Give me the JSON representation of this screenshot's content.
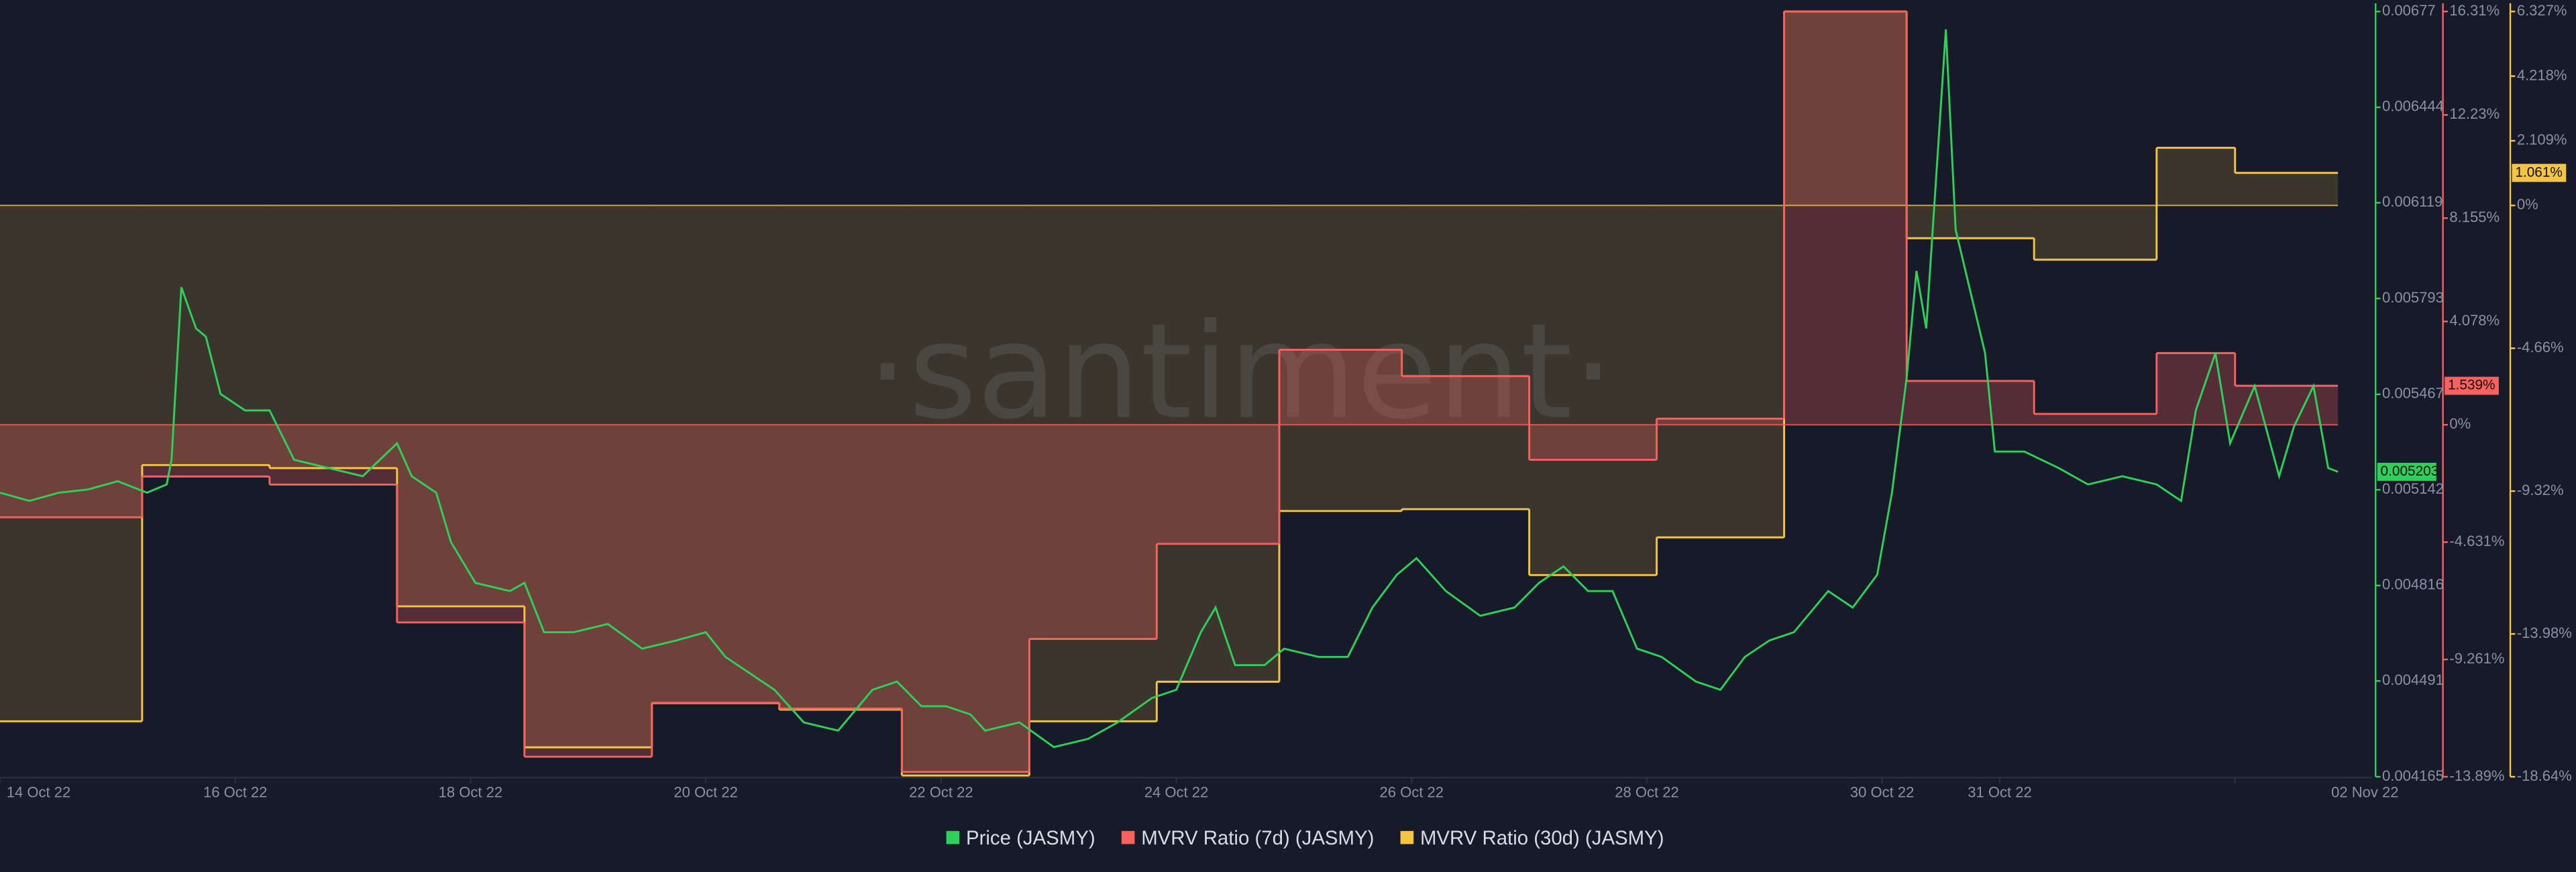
{
  "chart_data": {
    "type": "line",
    "watermark": "·santiment·",
    "xlim": [
      "2022-10-14 00:00",
      "2022-11-03 04:00"
    ],
    "xticks": [
      {
        "value": "2022-10-14 00:00",
        "label": "14 Oct 22"
      },
      {
        "value": "2022-10-16 00:00",
        "label": "16 Oct 22"
      },
      {
        "value": "2022-10-18 00:00",
        "label": "18 Oct 22"
      },
      {
        "value": "2022-10-20 00:00",
        "label": "20 Oct 22"
      },
      {
        "value": "2022-10-22 00:00",
        "label": "22 Oct 22"
      },
      {
        "value": "2022-10-24 00:00",
        "label": "24 Oct 22"
      },
      {
        "value": "2022-10-26 00:00",
        "label": "26 Oct 22"
      },
      {
        "value": "2022-10-28 00:00",
        "label": "28 Oct 22"
      },
      {
        "value": "2022-10-30 00:00",
        "label": "30 Oct 22"
      },
      {
        "value": "2022-10-31 00:00",
        "label": "31 Oct 22"
      },
      {
        "value": "2022-11-02 00:00",
        "label": "02 Nov 22"
      }
    ],
    "ylim": [
      0.004165,
      0.00677
    ],
    "yticks": [
      0.00677,
      0.006444,
      0.006119,
      0.005793,
      0.005467,
      0.005142,
      0.004816,
      0.004491,
      0.004165
    ],
    "y2lim": [
      -13.89,
      16.31
    ],
    "y2ticks": [
      {
        "value": 16.31,
        "label": "16.31%"
      },
      {
        "value": 12.23,
        "label": "12.23%"
      },
      {
        "value": 8.155,
        "label": "8.155%"
      },
      {
        "value": 4.078,
        "label": "4.078%"
      },
      {
        "value": 0,
        "label": "0%"
      },
      {
        "value": -4.631,
        "label": "-4.631%"
      },
      {
        "value": -9.261,
        "label": "-9.261%"
      },
      {
        "value": -13.89,
        "label": "-13.89%"
      }
    ],
    "y3lim": [
      -18.64,
      6.327
    ],
    "y3ticks": [
      {
        "value": 6.327,
        "label": "6.327%"
      },
      {
        "value": 4.218,
        "label": "4.218%"
      },
      {
        "value": 2.109,
        "label": "2.109%"
      },
      {
        "value": 0,
        "label": "0%"
      },
      {
        "value": -4.66,
        "label": "-4.66%"
      },
      {
        "value": -9.32,
        "label": "-9.32%"
      },
      {
        "value": -13.98,
        "label": "-13.98%"
      },
      {
        "value": -18.64,
        "label": "-18.64%"
      }
    ],
    "grid": false,
    "series": [
      {
        "name": "Price (JASMY)",
        "color": "#2fcf59",
        "x": [
          "2022-10-14 00:00",
          "2022-10-14 06:00",
          "2022-10-14 12:00",
          "2022-10-14 18:00",
          "2022-10-15 00:00",
          "2022-10-15 06:00",
          "2022-10-15 10:00",
          "2022-10-15 11:00",
          "2022-10-15 13:00",
          "2022-10-15 16:00",
          "2022-10-15 18:00",
          "2022-10-15 21:00",
          "2022-10-16 02:00",
          "2022-10-16 07:00",
          "2022-10-16 12:00",
          "2022-10-16 19:00",
          "2022-10-17 02:00",
          "2022-10-17 09:00",
          "2022-10-17 12:00",
          "2022-10-17 17:00",
          "2022-10-17 20:00",
          "2022-10-18 01:00",
          "2022-10-18 08:00",
          "2022-10-18 11:00",
          "2022-10-18 15:00",
          "2022-10-18 21:00",
          "2022-10-19 04:00",
          "2022-10-19 11:00",
          "2022-10-19 18:00",
          "2022-10-20 00:00",
          "2022-10-20 04:00",
          "2022-10-20 09:00",
          "2022-10-20 14:00",
          "2022-10-20 20:00",
          "2022-10-21 03:00",
          "2022-10-21 10:00",
          "2022-10-21 15:00",
          "2022-10-21 20:00",
          "2022-10-22 01:00",
          "2022-10-22 06:00",
          "2022-10-22 09:00",
          "2022-10-22 16:00",
          "2022-10-22 23:00",
          "2022-10-23 06:00",
          "2022-10-23 12:00",
          "2022-10-23 19:00",
          "2022-10-24 00:00",
          "2022-10-24 05:00",
          "2022-10-24 08:00",
          "2022-10-24 12:00",
          "2022-10-24 18:00",
          "2022-10-24 22:00",
          "2022-10-25 05:00",
          "2022-10-25 11:00",
          "2022-10-25 16:00",
          "2022-10-25 21:00",
          "2022-10-26 01:00",
          "2022-10-26 07:00",
          "2022-10-26 14:00",
          "2022-10-26 21:00",
          "2022-10-27 02:00",
          "2022-10-27 07:00",
          "2022-10-27 12:00",
          "2022-10-27 17:00",
          "2022-10-27 22:00",
          "2022-10-28 03:00",
          "2022-10-28 10:00",
          "2022-10-28 15:00",
          "2022-10-28 20:00",
          "2022-10-29 01:00",
          "2022-10-29 06:00",
          "2022-10-29 13:00",
          "2022-10-29 18:00",
          "2022-10-29 23:00",
          "2022-10-30 02:00",
          "2022-10-30 05:00",
          "2022-10-30 07:00",
          "2022-10-30 09:00",
          "2022-10-30 13:00",
          "2022-10-30 15:00",
          "2022-10-30 17:00",
          "2022-10-30 21:00",
          "2022-10-30 23:00",
          "2022-10-31 05:00",
          "2022-10-31 12:00",
          "2022-10-31 18:00",
          "2022-11-01 01:00",
          "2022-11-01 08:00",
          "2022-11-01 13:00",
          "2022-11-01 16:00",
          "2022-11-01 20:00",
          "2022-11-01 23:00",
          "2022-11-02 04:00",
          "2022-11-02 09:00",
          "2022-11-02 12:00",
          "2022-11-02 16:00",
          "2022-11-02 19:00",
          "2022-11-02 21:00"
        ],
        "values": [
          0.005132,
          0.005104,
          0.005132,
          0.005143,
          0.005171,
          0.005132,
          0.00516,
          0.005244,
          0.005831,
          0.005691,
          0.005663,
          0.005468,
          0.005412,
          0.005412,
          0.005244,
          0.005216,
          0.005188,
          0.0053,
          0.005188,
          0.005132,
          0.004964,
          0.004825,
          0.004797,
          0.004825,
          0.004657,
          0.004657,
          0.004685,
          0.004601,
          0.004629,
          0.004657,
          0.004573,
          0.004517,
          0.004461,
          0.00435,
          0.004322,
          0.004461,
          0.004489,
          0.004405,
          0.004405,
          0.004377,
          0.004322,
          0.00435,
          0.004266,
          0.004294,
          0.00435,
          0.004433,
          0.004461,
          0.004657,
          0.004741,
          0.004545,
          0.004545,
          0.004601,
          0.004573,
          0.004573,
          0.004741,
          0.004853,
          0.004909,
          0.004797,
          0.004713,
          0.004741,
          0.004825,
          0.004881,
          0.004797,
          0.004797,
          0.004601,
          0.004573,
          0.004489,
          0.004461,
          0.004573,
          0.004629,
          0.004657,
          0.004797,
          0.004741,
          0.004853,
          0.005132,
          0.005523,
          0.005887,
          0.005691,
          0.006709,
          0.006027,
          0.005887,
          0.005607,
          0.005272,
          0.005272,
          0.005216,
          0.00516,
          0.005188,
          0.00516,
          0.005104,
          0.005412,
          0.005607,
          0.0053,
          0.005495,
          0.005188,
          0.005356,
          0.005495,
          0.005216,
          0.005203
        ]
      },
      {
        "name": "MVRV Ratio (7d) (JASMY)",
        "color": "#f7625f",
        "axis": "y2",
        "last_value_label": "1.539%",
        "x": [
          "2022-10-14 00:00",
          "2022-10-15 05:00",
          "2022-10-16 07:00",
          "2022-10-17 09:00",
          "2022-10-18 11:00",
          "2022-10-19 13:00",
          "2022-10-20 15:00",
          "2022-10-21 16:00",
          "2022-10-22 18:00",
          "2022-10-23 20:00",
          "2022-10-24 21:00",
          "2022-10-25 22:00",
          "2022-10-27 00:00",
          "2022-10-28 02:00",
          "2022-10-29 04:00",
          "2022-10-30 05:00",
          "2022-10-31 07:00",
          "2022-11-01 08:00",
          "2022-11-02 00:00"
        ],
        "values": [
          -3.65,
          -2.04,
          -2.36,
          -7.8,
          -13.1,
          -10.97,
          -11.2,
          -13.7,
          -8.45,
          -4.7,
          2.96,
          1.92,
          -1.38,
          0.24,
          16.31,
          1.73,
          0.43,
          2.83,
          1.539
        ]
      },
      {
        "name": "MVRV Ratio (30d) (JASMY)",
        "color": "#f4c542",
        "axis": "y3",
        "last_value_label": "1.061%",
        "x": [
          "2022-10-14 00:00",
          "2022-10-15 05:00",
          "2022-10-16 07:00",
          "2022-10-17 09:00",
          "2022-10-18 11:00",
          "2022-10-19 13:00",
          "2022-10-20 15:00",
          "2022-10-21 16:00",
          "2022-10-22 18:00",
          "2022-10-23 20:00",
          "2022-10-24 21:00",
          "2022-10-25 22:00",
          "2022-10-27 00:00",
          "2022-10-28 02:00",
          "2022-10-29 04:00",
          "2022-10-30 05:00",
          "2022-10-31 07:00",
          "2022-11-01 08:00",
          "2022-11-02 00:00"
        ],
        "values": [
          -16.83,
          -8.47,
          -8.57,
          -13.08,
          -17.68,
          -16.24,
          -16.45,
          -18.6,
          -16.83,
          -15.54,
          -9.97,
          -9.91,
          -12.06,
          -10.83,
          6.327,
          -1.07,
          -1.77,
          1.88,
          1.061
        ]
      }
    ]
  }
}
